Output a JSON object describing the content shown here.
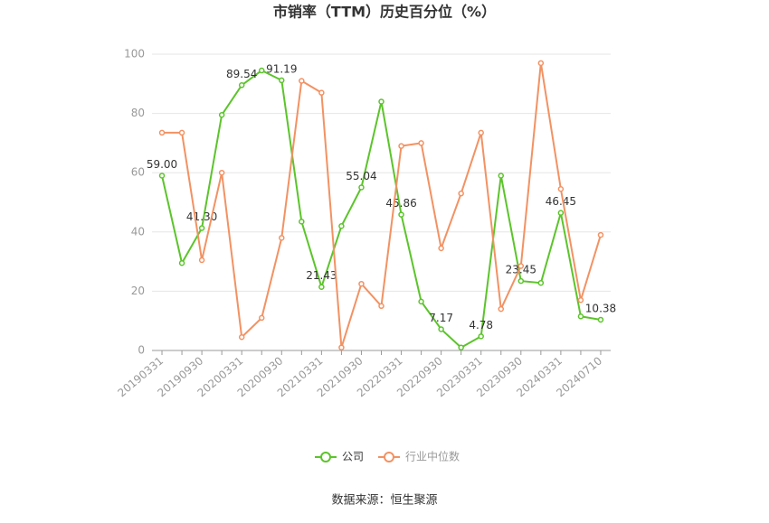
{
  "chart_data": {
    "type": "line",
    "title": "市销率（TTM）历史百分位（%）",
    "categories": [
      "20190331",
      null,
      "20190930",
      null,
      "20200331",
      null,
      "20200930",
      null,
      "20210331",
      null,
      "20210930",
      null,
      "20220331",
      null,
      "20220930",
      null,
      "20230331",
      null,
      "20230930",
      null,
      "20240331",
      null,
      "20240710"
    ],
    "series": [
      {
        "name": "公司",
        "color": "#5cc42b",
        "values": [
          59.0,
          29.5,
          41.3,
          79.5,
          89.54,
          94.5,
          91.19,
          43.5,
          21.43,
          42,
          55.04,
          84,
          45.86,
          16.5,
          7.17,
          1,
          4.78,
          59,
          23.45,
          22.8,
          46.45,
          11.5,
          10.38
        ],
        "value_labels": [
          "59.00",
          null,
          "41.30",
          null,
          "89.54",
          null,
          "91.19",
          null,
          "21.43",
          null,
          "55.04",
          null,
          "45.86",
          null,
          "7.17",
          null,
          "4.78",
          null,
          "23.45",
          null,
          "46.45",
          null,
          "10.38"
        ]
      },
      {
        "name": "行业中位数",
        "color": "#f29263",
        "values": [
          73.5,
          73.5,
          30.5,
          60,
          4.5,
          11,
          38,
          91,
          87,
          1,
          22.5,
          15,
          69,
          70,
          34.5,
          53,
          73.5,
          14,
          28.5,
          97,
          54.5,
          17,
          39
        ]
      }
    ],
    "ylim": [
      0,
      100
    ],
    "yticks": [
      0,
      20,
      40,
      60,
      80,
      100
    ],
    "grid": true,
    "legend": "bottom",
    "source": "数据来源：恒生聚源"
  }
}
